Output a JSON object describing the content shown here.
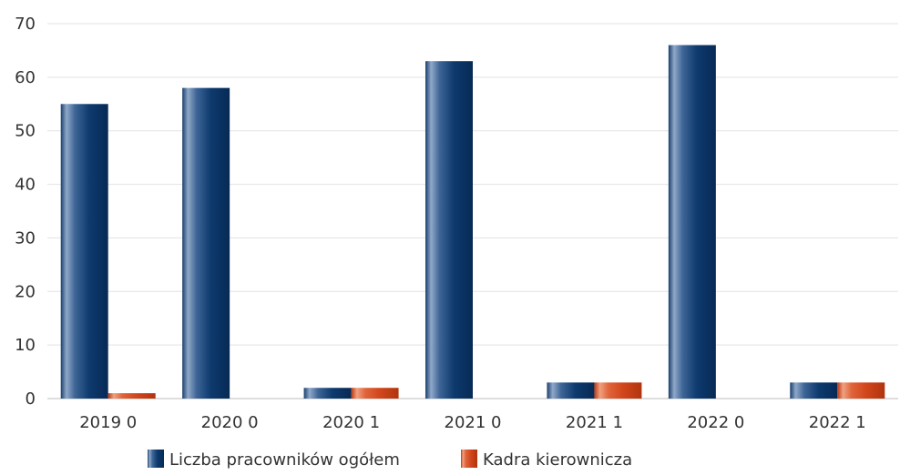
{
  "chart_data": {
    "type": "bar",
    "categories": [
      "2019 0",
      "2020 0",
      "2020 1",
      "2021 0",
      "2021 1",
      "2022 0",
      "2022 1"
    ],
    "series": [
      {
        "name": "Liczba pracowników ogółem",
        "values": [
          55,
          58,
          2,
          63,
          3,
          66,
          3
        ],
        "color": "#0e3a6e"
      },
      {
        "name": "Kadra kierownicza",
        "values": [
          1,
          0,
          2,
          0,
          3,
          0,
          3
        ],
        "color": "#d2461c"
      }
    ],
    "ylim": [
      0,
      70
    ],
    "yticks": [
      0,
      10,
      20,
      30,
      40,
      50,
      60,
      70
    ],
    "grid": true,
    "legend_position": "bottom",
    "title": "",
    "xlabel": "",
    "ylabel": ""
  }
}
